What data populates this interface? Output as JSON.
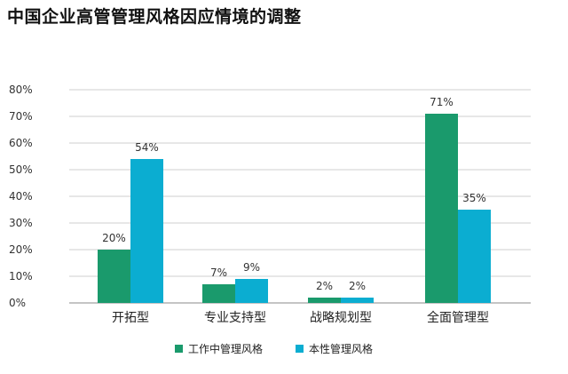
{
  "chart_data": {
    "type": "bar",
    "title": "中国企业高管管理风格因应情境的调整",
    "categories": [
      "开拓型",
      "专业支持型",
      "战略规划型",
      "全面管理型"
    ],
    "series": [
      {
        "name": "工作中管理风格",
        "values": [
          20,
          7,
          2,
          71
        ],
        "labels": [
          "20%",
          "7%",
          "2%",
          "71%"
        ],
        "color": "#1a9a6c"
      },
      {
        "name": "本性管理风格",
        "values": [
          54,
          9,
          2,
          35
        ],
        "labels": [
          "54%",
          "9%",
          "2%",
          "35%"
        ],
        "color": "#0badd1"
      }
    ],
    "yticks": [
      "0%",
      "10%",
      "20%",
      "30%",
      "40%",
      "50%",
      "60%",
      "70%",
      "80%"
    ],
    "ylim": [
      0,
      80
    ],
    "grid": true,
    "legend": "bottom"
  }
}
